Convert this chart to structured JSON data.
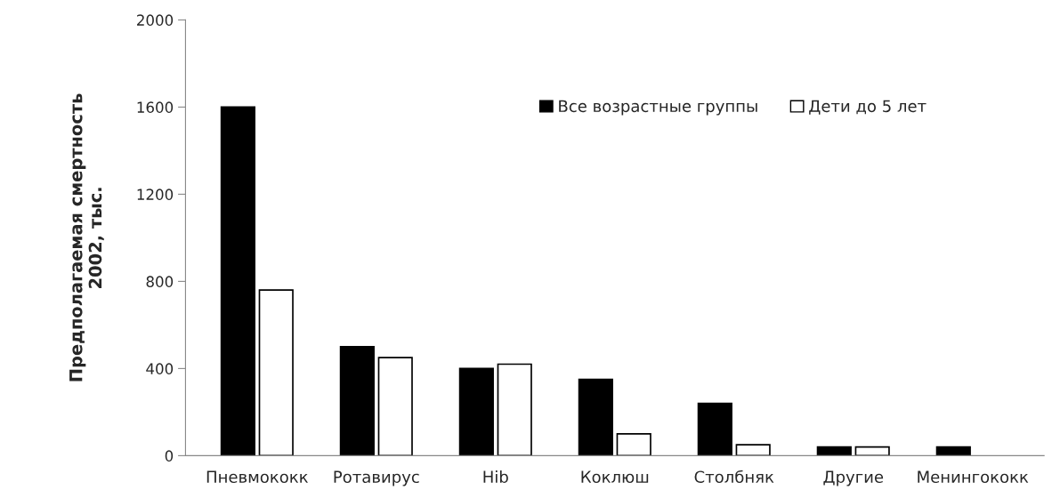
{
  "chart_data": {
    "type": "bar",
    "ylabel": "Предполагаемая смертность\n2002, тыс.",
    "categories": [
      "Пневмококк",
      "Ротавирус",
      "Hib",
      "Коклюш",
      "Столбняк",
      "Другие",
      "Менингококк"
    ],
    "series": [
      {
        "name": "Все возрастные группы",
        "color": "#000000",
        "values": [
          1600,
          500,
          400,
          350,
          240,
          40,
          40
        ]
      },
      {
        "name": "Дети до 5 лет",
        "color": "#ffffff",
        "values": [
          760,
          450,
          420,
          100,
          50,
          40,
          null
        ]
      }
    ],
    "ylim": [
      0,
      2000
    ],
    "yticks": [
      0,
      400,
      800,
      1200,
      1600,
      2000
    ],
    "grid": false,
    "legend": "top right"
  }
}
